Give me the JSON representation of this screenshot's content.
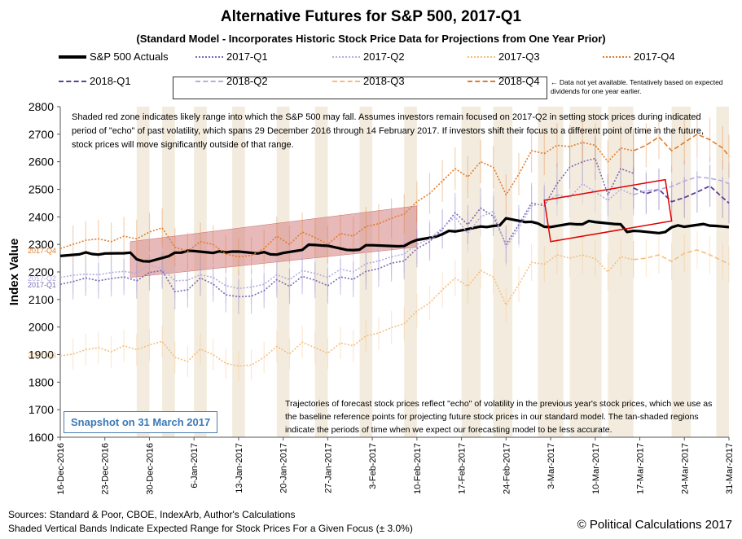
{
  "header": {
    "title": "Alternative Futures for S&P 500, 2017-Q1",
    "subtitle": "(Standard Model - Incorporates Historic Stock Price Data for Projections from One Year Prior)"
  },
  "legend": {
    "items": [
      {
        "label": "S&P 500 Actuals",
        "color": "#000000",
        "style": "solid"
      },
      {
        "label": "2017-Q1",
        "color": "#7b68b5",
        "style": "dotted"
      },
      {
        "label": "2017-Q2",
        "color": "#b3aedc",
        "style": "dotted"
      },
      {
        "label": "2017-Q3",
        "color": "#f5be7d",
        "style": "dotted"
      },
      {
        "label": "2017-Q4",
        "color": "#e07b2a",
        "style": "dotted"
      },
      {
        "label": "2018-Q1",
        "color": "#5b3f98",
        "style": "dashed"
      },
      {
        "label": "2018-Q2",
        "color": "#b3aedc",
        "style": "dashed"
      },
      {
        "label": "2018-Q3",
        "color": "#f5be7d",
        "style": "dashed"
      },
      {
        "label": "2018-Q4",
        "color": "#e07b2a",
        "style": "dashed"
      }
    ],
    "note": "← Data not yet available. Tentatively based on expected dividends for one year earlier."
  },
  "annotations": {
    "top": "Shaded red zone indicates likely range into which the S&P 500 may fall. Assumes investors remain focused on 2017-Q2 in setting stock prices during indicated period of \"echo\" of past volatility, which spans 29 December 2016 through 14 February 2017. If investors shift their focus to a different point of time in the future, stock prices will move significantly outside of that range.",
    "bottom": "Trajectories of forecast stock prices reflect \"echo\" of volatility in the previous year's stock prices, which we use as the baseline reference points for projecting future stock prices in our standard model. The tan-shaded regions indicate the periods of time when we expect our forecasting model to be less accurate.",
    "snapshot": "Snapshot on 31 March 2017"
  },
  "footer": {
    "sources": "Sources: Standard & Poor, CBOE, IndexArb, Author's Calculations",
    "bands_note": "Shaded Vertical Bands Indicate Expected Range for Stock Prices For a Given Focus (± 3.0%)",
    "copyright": "© Political Calculations 2017"
  },
  "chart_data": {
    "type": "line",
    "title": "Alternative Futures for S&P 500, 2017-Q1",
    "xlabel": "",
    "ylabel": "Index Value",
    "ylim": [
      1600,
      2800
    ],
    "yticks": [
      1600,
      1700,
      1800,
      1900,
      2000,
      2100,
      2200,
      2300,
      2400,
      2500,
      2600,
      2700,
      2800
    ],
    "xticks": [
      "16-Dec-2016",
      "23-Dec-2016",
      "30-Dec-2016",
      "6-Jan-2017",
      "13-Jan-2017",
      "20-Jan-2017",
      "27-Jan-2017",
      "3-Feb-2017",
      "10-Feb-2017",
      "17-Feb-2017",
      "24-Feb-2017",
      "3-Mar-2017",
      "10-Mar-2017",
      "17-Mar-2017",
      "24-Mar-2017",
      "31-Mar-2017"
    ],
    "x_day_range": [
      0,
      105
    ],
    "side_labels": [
      {
        "text": "2017-Q4",
        "y": 2280,
        "color": "#e07b2a"
      },
      {
        "text": "2017-Q2",
        "y": 2180,
        "color": "#b3aedc"
      },
      {
        "text": "2017-Q1",
        "y": 2155,
        "color": "#7b68b5"
      },
      {
        "text": "2017-Q3",
        "y": 1900,
        "color": "#f5be7d"
      }
    ],
    "series": [
      {
        "name": "S&P 500 Actuals",
        "color": "#000000",
        "width": 3.2,
        "dash": "",
        "x": [
          0,
          2,
          3,
          4,
          5,
          6,
          7,
          10,
          11,
          12,
          13,
          14,
          17,
          18,
          19,
          20,
          21,
          24,
          25,
          26,
          27,
          28,
          31,
          32,
          33,
          34,
          35,
          38,
          39,
          40,
          41,
          42,
          45,
          46,
          47,
          48,
          49,
          53,
          54,
          55,
          56,
          59,
          60,
          61,
          62,
          63,
          66,
          67,
          68,
          69,
          70,
          73,
          74,
          75,
          76,
          77,
          80,
          81,
          82,
          83,
          84,
          87,
          88,
          89,
          90,
          91,
          94,
          95,
          96,
          97,
          98,
          101,
          102,
          103,
          104,
          105
        ],
        "y": [
          2258,
          2262,
          2264,
          2271,
          2265,
          2263,
          2267,
          2268,
          2270,
          2246,
          2239,
          2238,
          2257,
          2270,
          2270,
          2277,
          2276,
          2269,
          2275,
          2271,
          2274,
          2274,
          2267,
          2272,
          2264,
          2263,
          2269,
          2280,
          2299,
          2298,
          2296,
          2295,
          2280,
          2279,
          2281,
          2297,
          2297,
          2293,
          2294,
          2307,
          2316,
          2328,
          2337,
          2349,
          2347,
          2351,
          2365,
          2363,
          2367,
          2369,
          2395,
          2381,
          2382,
          2376,
          2364,
          2363,
          2375,
          2373,
          2373,
          2385,
          2381,
          2374,
          2373,
          2345,
          2349,
          2348,
          2341,
          2345,
          2362,
          2369,
          2364,
          2374,
          2368,
          2367,
          2365,
          2363
        ]
      },
      {
        "name": "2017-Q1",
        "color": "#7b68b5",
        "width": 1.6,
        "dash": "2,2",
        "x": [
          0,
          2,
          4,
          6,
          8,
          10,
          12,
          14,
          16,
          18,
          20,
          22,
          24,
          26,
          28,
          30,
          32,
          34,
          36,
          38,
          40,
          42,
          44,
          46,
          48,
          50,
          52,
          54,
          56,
          58,
          60,
          62,
          64,
          66,
          68,
          70,
          72,
          74,
          76,
          78,
          80,
          82,
          84,
          86,
          88,
          90
        ],
        "y": [
          2155,
          2165,
          2178,
          2168,
          2176,
          2182,
          2168,
          2198,
          2205,
          2128,
          2135,
          2178,
          2156,
          2117,
          2110,
          2112,
          2132,
          2172,
          2148,
          2184,
          2170,
          2150,
          2182,
          2173,
          2202,
          2212,
          2232,
          2240,
          2285,
          2310,
          2355,
          2415,
          2372,
          2432,
          2402,
          2300,
          2372,
          2450,
          2440,
          2520,
          2580,
          2600,
          2612,
          2480,
          2575,
          2558
        ]
      },
      {
        "name": "2018-Q1",
        "color": "#5b3f98",
        "width": 1.8,
        "dash": "6,3",
        "x": [
          90,
          92,
          94,
          96,
          98,
          100,
          102,
          104,
          105
        ],
        "y": [
          2505,
          2484,
          2500,
          2455,
          2470,
          2490,
          2512,
          2470,
          2450
        ]
      },
      {
        "name": "2017-Q2",
        "color": "#b3aedc",
        "width": 1.6,
        "dash": "2,2",
        "x": [
          0,
          2,
          4,
          6,
          8,
          10,
          12,
          14,
          16,
          18,
          20,
          22,
          24,
          26,
          28,
          30,
          32,
          34,
          36,
          38,
          40,
          42,
          44,
          46,
          48,
          50,
          52,
          54,
          56,
          58,
          60,
          62,
          64,
          66,
          68,
          70,
          72,
          74,
          76,
          78,
          80,
          82,
          84,
          86,
          88,
          90
        ],
        "y": [
          2180,
          2188,
          2192,
          2190,
          2198,
          2202,
          2195,
          2225,
          2212,
          2168,
          2170,
          2190,
          2180,
          2150,
          2140,
          2145,
          2155,
          2190,
          2172,
          2205,
          2195,
          2180,
          2210,
          2200,
          2230,
          2240,
          2255,
          2265,
          2300,
          2320,
          2360,
          2400,
          2340,
          2400,
          2420,
          2290,
          2360,
          2440,
          2450,
          2480,
          2470,
          2520,
          2490,
          2460,
          2500,
          2480
        ]
      },
      {
        "name": "2018-Q2",
        "color": "#b3aedc",
        "width": 1.6,
        "dash": "6,3",
        "x": [
          90,
          92,
          94,
          96,
          98,
          100,
          102,
          104,
          105
        ],
        "y": [
          2480,
          2495,
          2500,
          2510,
          2530,
          2545,
          2540,
          2530,
          2520
        ]
      },
      {
        "name": "2017-Q3",
        "color": "#f5be7d",
        "width": 1.6,
        "dash": "2,2",
        "x": [
          0,
          2,
          4,
          6,
          8,
          10,
          12,
          14,
          16,
          18,
          20,
          22,
          24,
          26,
          28,
          30,
          32,
          34,
          36,
          38,
          40,
          42,
          44,
          46,
          48,
          50,
          52,
          54,
          56,
          58,
          60,
          62,
          64,
          66,
          68,
          70,
          72,
          74,
          76,
          78,
          80,
          82,
          84,
          86,
          88,
          90
        ],
        "y": [
          1895,
          1902,
          1918,
          1925,
          1910,
          1932,
          1918,
          1935,
          1948,
          1890,
          1875,
          1920,
          1900,
          1868,
          1858,
          1862,
          1890,
          1930,
          1902,
          1945,
          1925,
          1905,
          1942,
          1932,
          1968,
          1978,
          1998,
          2012,
          2058,
          2088,
          2135,
          2178,
          2148,
          2205,
          2182,
          2080,
          2155,
          2235,
          2228,
          2262,
          2250,
          2262,
          2248,
          2200,
          2255,
          2245
        ]
      },
      {
        "name": "2018-Q3",
        "color": "#f5be7d",
        "width": 1.6,
        "dash": "6,3",
        "x": [
          90,
          92,
          94,
          96,
          98,
          100,
          102,
          104,
          105
        ],
        "y": [
          2245,
          2250,
          2262,
          2238,
          2268,
          2280,
          2262,
          2240,
          2228
        ]
      },
      {
        "name": "2017-Q4",
        "color": "#e07b2a",
        "width": 1.6,
        "dash": "2,2",
        "x": [
          0,
          2,
          4,
          6,
          8,
          10,
          12,
          14,
          16,
          18,
          20,
          22,
          24,
          26,
          28,
          30,
          32,
          34,
          36,
          38,
          40,
          42,
          44,
          46,
          48,
          50,
          52,
          54,
          56,
          58,
          60,
          62,
          64,
          66,
          68,
          70,
          72,
          74,
          76,
          78,
          80,
          82,
          84,
          86,
          88,
          90
        ],
        "y": [
          2285,
          2300,
          2315,
          2320,
          2310,
          2330,
          2320,
          2345,
          2360,
          2290,
          2275,
          2310,
          2300,
          2265,
          2255,
          2260,
          2285,
          2330,
          2300,
          2345,
          2325,
          2300,
          2340,
          2330,
          2365,
          2375,
          2395,
          2410,
          2455,
          2485,
          2530,
          2575,
          2545,
          2600,
          2580,
          2480,
          2555,
          2640,
          2630,
          2660,
          2655,
          2670,
          2660,
          2600,
          2650,
          2640
        ]
      },
      {
        "name": "2018-Q4",
        "color": "#e07b2a",
        "width": 1.6,
        "dash": "6,3",
        "x": [
          90,
          92,
          94,
          96,
          98,
          100,
          102,
          104,
          105
        ],
        "y": [
          2640,
          2660,
          2690,
          2640,
          2670,
          2700,
          2680,
          2650,
          2620
        ]
      }
    ],
    "red_zone": {
      "x": [
        11,
        56
      ],
      "y_low": [
        2180,
        2290
      ],
      "y_high": [
        2310,
        2440
      ],
      "color": "#d98a8a"
    },
    "red_box": {
      "corners_data": [
        [
          76,
          2460
        ],
        [
          95,
          2535
        ],
        [
          96,
          2385
        ],
        [
          77,
          2310
        ]
      ],
      "color": "#e00000"
    },
    "tan_bands": [
      [
        12,
        14
      ],
      [
        16,
        18
      ],
      [
        21,
        23
      ],
      [
        27,
        29
      ],
      [
        34,
        36
      ],
      [
        40,
        42
      ],
      [
        47,
        49
      ],
      [
        54,
        56
      ],
      [
        63,
        66
      ],
      [
        68,
        71
      ],
      [
        75,
        79
      ],
      [
        80,
        85
      ],
      [
        86,
        90
      ],
      [
        96,
        99
      ],
      [
        103,
        105
      ]
    ]
  }
}
